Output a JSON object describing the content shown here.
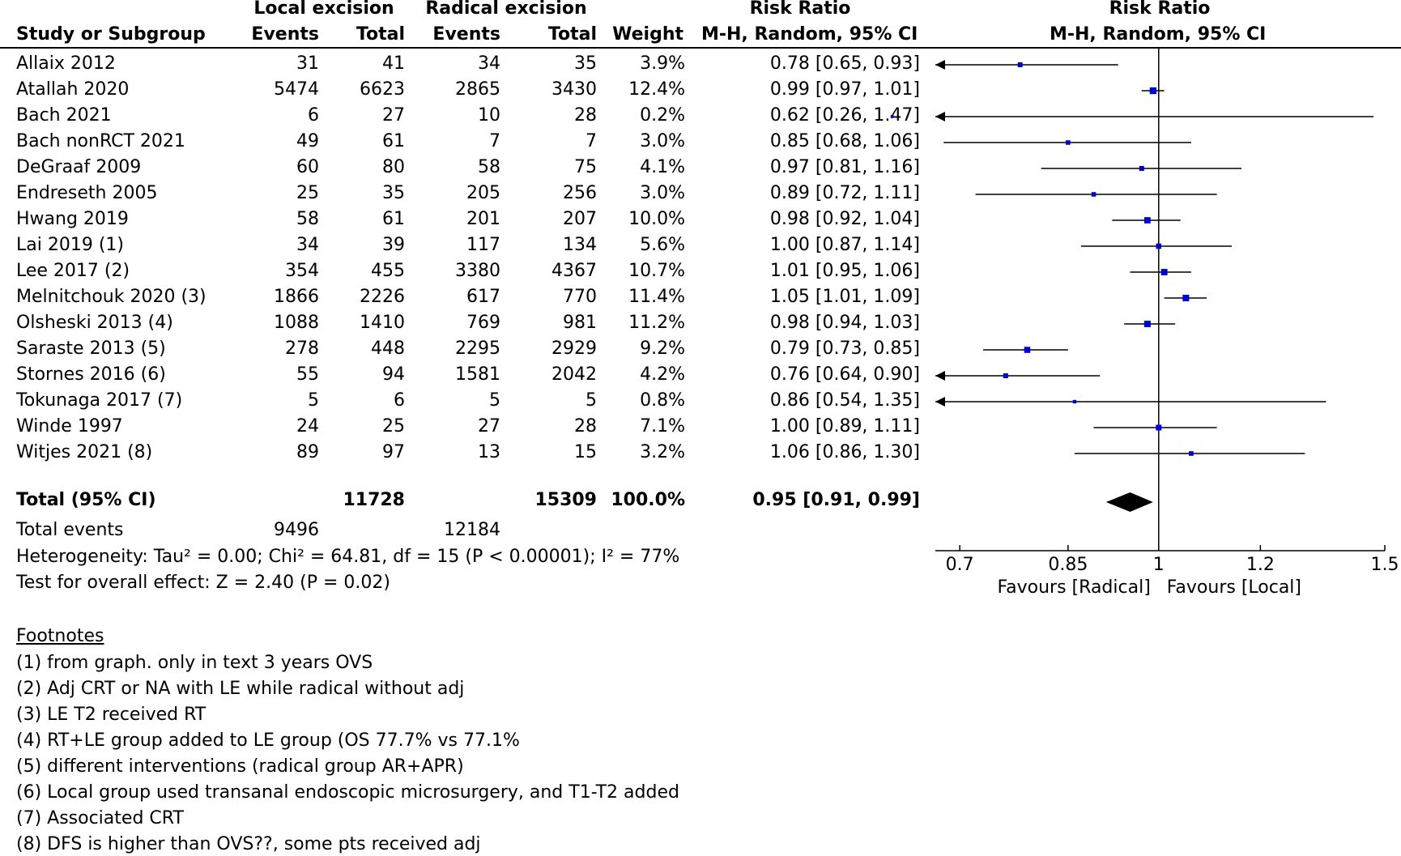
{
  "headers": {
    "group1": "Local excision",
    "group2": "Radical excision",
    "rr_top": "Risk Ratio",
    "rr_top_plot": "Risk Ratio",
    "study": "Study or Subgroup",
    "events1": "Events",
    "total1": "Total",
    "events2": "Events",
    "total2": "Total",
    "weight": "Weight",
    "rr_method": "M-H, Random, 95% CI",
    "rr_method_plot": "M-H, Random, 95% CI"
  },
  "rows": [
    {
      "study": "Allaix 2012",
      "e1": "31",
      "t1": "41",
      "e2": "34",
      "t2": "35",
      "weight": "3.9%",
      "ci": "0.78 [0.65, 0.93]"
    },
    {
      "study": "Atallah 2020",
      "e1": "5474",
      "t1": "6623",
      "e2": "2865",
      "t2": "3430",
      "weight": "12.4%",
      "ci": "0.99 [0.97, 1.01]"
    },
    {
      "study": "Bach 2021",
      "e1": "6",
      "t1": "27",
      "e2": "10",
      "t2": "28",
      "weight": "0.2%",
      "ci": "0.62 [0.26, 1.47]"
    },
    {
      "study": "Bach nonRCT 2021",
      "e1": "49",
      "t1": "61",
      "e2": "7",
      "t2": "7",
      "weight": "3.0%",
      "ci": "0.85 [0.68, 1.06]"
    },
    {
      "study": "DeGraaf 2009",
      "e1": "60",
      "t1": "80",
      "e2": "58",
      "t2": "75",
      "weight": "4.1%",
      "ci": "0.97 [0.81, 1.16]"
    },
    {
      "study": "Endreseth 2005",
      "e1": "25",
      "t1": "35",
      "e2": "205",
      "t2": "256",
      "weight": "3.0%",
      "ci": "0.89 [0.72, 1.11]"
    },
    {
      "study": "Hwang 2019",
      "e1": "58",
      "t1": "61",
      "e2": "201",
      "t2": "207",
      "weight": "10.0%",
      "ci": "0.98 [0.92, 1.04]"
    },
    {
      "study": "Lai 2019 (1)",
      "e1": "34",
      "t1": "39",
      "e2": "117",
      "t2": "134",
      "weight": "5.6%",
      "ci": "1.00 [0.87, 1.14]"
    },
    {
      "study": "Lee 2017 (2)",
      "e1": "354",
      "t1": "455",
      "e2": "3380",
      "t2": "4367",
      "weight": "10.7%",
      "ci": "1.01 [0.95, 1.06]"
    },
    {
      "study": "Melnitchouk 2020 (3)",
      "e1": "1866",
      "t1": "2226",
      "e2": "617",
      "t2": "770",
      "weight": "11.4%",
      "ci": "1.05 [1.01, 1.09]"
    },
    {
      "study": "Olsheski 2013 (4)",
      "e1": "1088",
      "t1": "1410",
      "e2": "769",
      "t2": "981",
      "weight": "11.2%",
      "ci": "0.98 [0.94, 1.03]"
    },
    {
      "study": "Saraste 2013 (5)",
      "e1": "278",
      "t1": "448",
      "e2": "2295",
      "t2": "2929",
      "weight": "9.2%",
      "ci": "0.79 [0.73, 0.85]"
    },
    {
      "study": "Stornes 2016 (6)",
      "e1": "55",
      "t1": "94",
      "e2": "1581",
      "t2": "2042",
      "weight": "4.2%",
      "ci": "0.76 [0.64, 0.90]"
    },
    {
      "study": "Tokunaga 2017 (7)",
      "e1": "5",
      "t1": "6",
      "e2": "5",
      "t2": "5",
      "weight": "0.8%",
      "ci": "0.86 [0.54, 1.35]"
    },
    {
      "study": "Winde 1997",
      "e1": "24",
      "t1": "25",
      "e2": "27",
      "t2": "28",
      "weight": "7.1%",
      "ci": "1.00 [0.89, 1.11]"
    },
    {
      "study": "Witjes 2021 (8)",
      "e1": "89",
      "t1": "97",
      "e2": "13",
      "t2": "15",
      "weight": "3.2%",
      "ci": "1.06 [0.86, 1.30]"
    }
  ],
  "total": {
    "label": "Total (95% CI)",
    "t1": "11728",
    "t2": "15309",
    "weight": "100.0%",
    "ci": "0.95 [0.91, 0.99]"
  },
  "total_events": {
    "label": "Total events",
    "e1": "9496",
    "e2": "12184"
  },
  "heterogeneity": "Heterogeneity: Tau² = 0.00; Chi² = 64.81, df = 15 (P < 0.00001); I² = 77%",
  "overall_effect": "Test for overall effect: Z = 2.40 (P = 0.02)",
  "footnotes_title": "Footnotes",
  "footnotes": [
    "(1) from graph. only in text 3 years OVS",
    "(2) Adj CRT or NA with LE while radical without adj",
    "(3) LE T2 received RT",
    "(4) RT+LE group added to LE group (OS 77.7% vs 77.1%",
    "(5) different interventions (radical group AR+APR)",
    "(6) Local group used transanal endoscopic microsurgery, and T1-T2 added",
    "(7) Associated CRT",
    "(8) DFS is higher than OVS??, some pts received adj"
  ],
  "colors": {
    "marker": "#0000cc",
    "line": "#000000",
    "diamond": "#000000"
  },
  "chart_data": {
    "type": "forest",
    "title": "Risk Ratio M-H, Random, 95% CI",
    "scale": "log",
    "xlim": [
      0.67,
      1.5
    ],
    "xticks": [
      0.7,
      0.85,
      1,
      1.2,
      1.5
    ],
    "xtick_labels": [
      "0.7",
      "0.85",
      "1",
      "1.2",
      "1.5"
    ],
    "favours_left": "Favours [Radical]",
    "favours_right": "Favours [Local]",
    "reference": 1,
    "series": [
      {
        "name": "Allaix 2012",
        "rr": 0.78,
        "lo": 0.65,
        "hi": 0.93,
        "weight": 3.9
      },
      {
        "name": "Atallah 2020",
        "rr": 0.99,
        "lo": 0.97,
        "hi": 1.01,
        "weight": 12.4
      },
      {
        "name": "Bach 2021",
        "rr": 0.62,
        "lo": 0.26,
        "hi": 1.47,
        "weight": 0.2
      },
      {
        "name": "Bach nonRCT 2021",
        "rr": 0.85,
        "lo": 0.68,
        "hi": 1.06,
        "weight": 3.0
      },
      {
        "name": "DeGraaf 2009",
        "rr": 0.97,
        "lo": 0.81,
        "hi": 1.16,
        "weight": 4.1
      },
      {
        "name": "Endreseth 2005",
        "rr": 0.89,
        "lo": 0.72,
        "hi": 1.11,
        "weight": 3.0
      },
      {
        "name": "Hwang 2019",
        "rr": 0.98,
        "lo": 0.92,
        "hi": 1.04,
        "weight": 10.0
      },
      {
        "name": "Lai 2019 (1)",
        "rr": 1.0,
        "lo": 0.87,
        "hi": 1.14,
        "weight": 5.6
      },
      {
        "name": "Lee 2017 (2)",
        "rr": 1.01,
        "lo": 0.95,
        "hi": 1.06,
        "weight": 10.7
      },
      {
        "name": "Melnitchouk 2020 (3)",
        "rr": 1.05,
        "lo": 1.01,
        "hi": 1.09,
        "weight": 11.4
      },
      {
        "name": "Olsheski 2013 (4)",
        "rr": 0.98,
        "lo": 0.94,
        "hi": 1.03,
        "weight": 11.2
      },
      {
        "name": "Saraste 2013 (5)",
        "rr": 0.79,
        "lo": 0.73,
        "hi": 0.85,
        "weight": 9.2
      },
      {
        "name": "Stornes 2016 (6)",
        "rr": 0.76,
        "lo": 0.64,
        "hi": 0.9,
        "weight": 4.2
      },
      {
        "name": "Tokunaga 2017 (7)",
        "rr": 0.86,
        "lo": 0.54,
        "hi": 1.35,
        "weight": 0.8
      },
      {
        "name": "Winde 1997",
        "rr": 1.0,
        "lo": 0.89,
        "hi": 1.11,
        "weight": 7.1
      },
      {
        "name": "Witjes 2021 (8)",
        "rr": 1.06,
        "lo": 0.86,
        "hi": 1.3,
        "weight": 3.2
      }
    ],
    "pooled": {
      "rr": 0.95,
      "lo": 0.91,
      "hi": 0.99
    }
  }
}
